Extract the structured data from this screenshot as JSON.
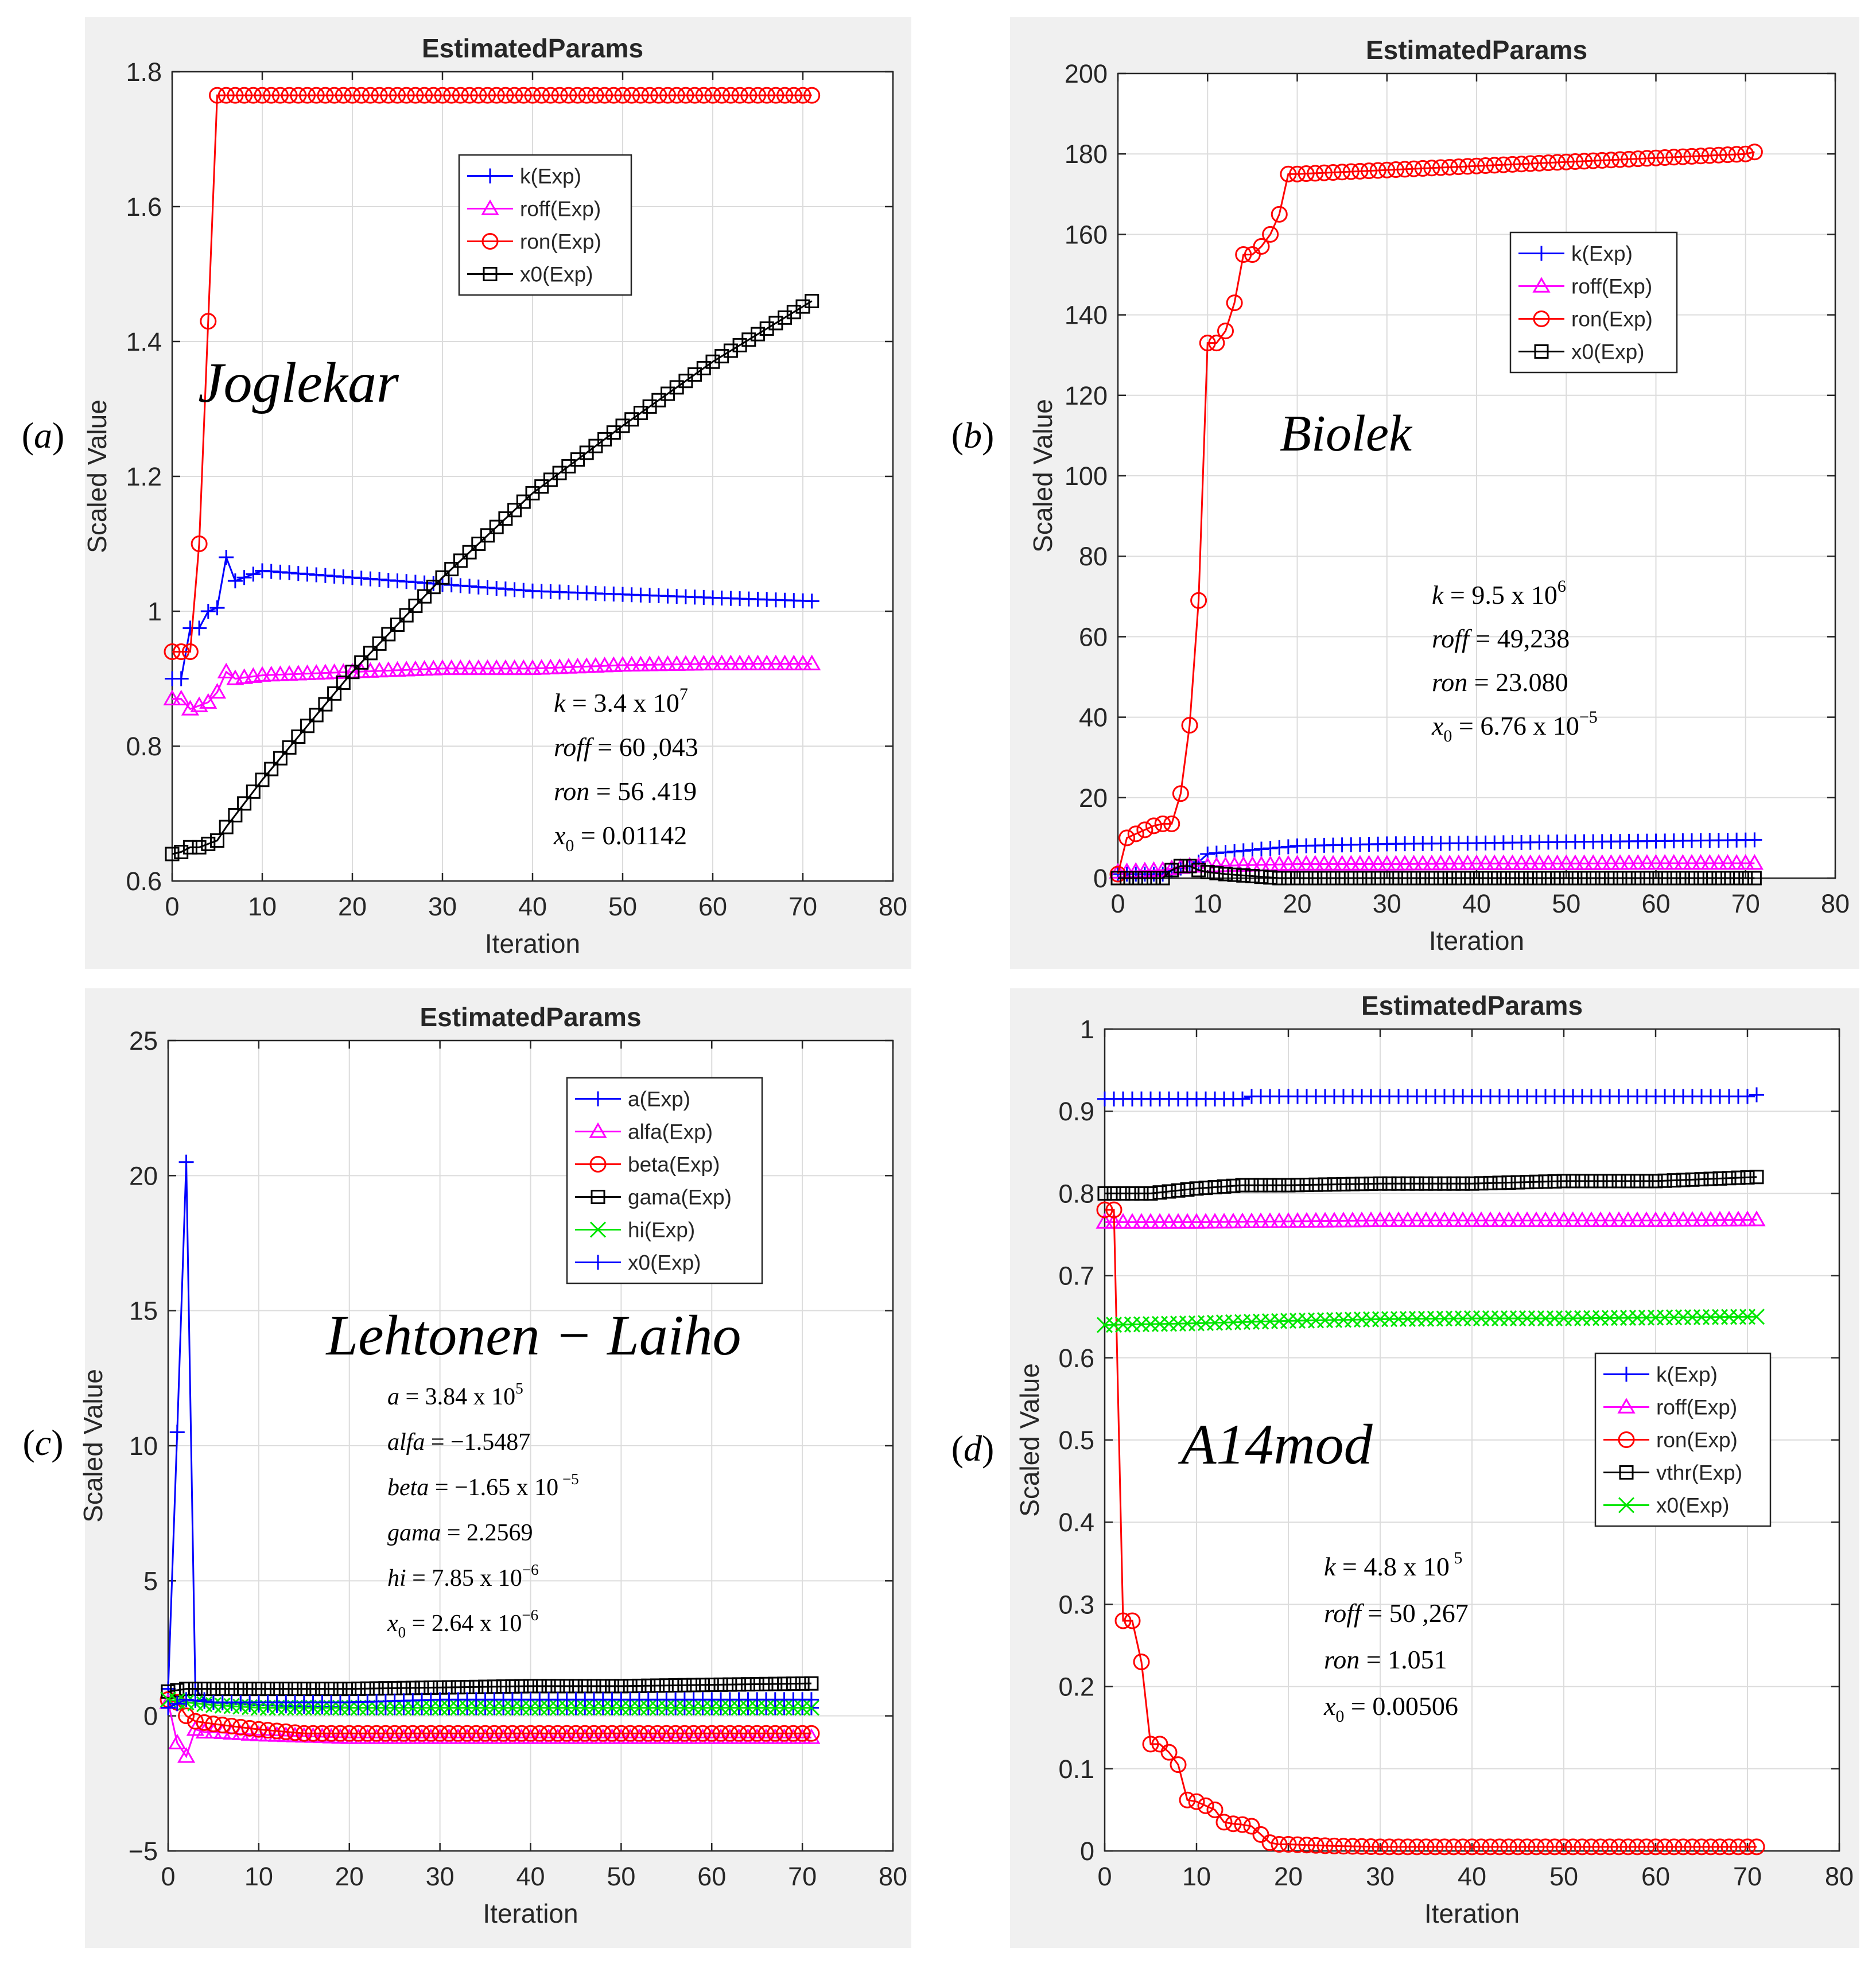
{
  "chart_data": [
    {
      "panel_label": "(a)",
      "type": "line",
      "title": "EstimatedParams",
      "xlabel": "Iteration",
      "ylabel": "Scaled Value",
      "xlim": [
        0,
        80
      ],
      "ylim": [
        0.6,
        1.8
      ],
      "xticks": [
        0,
        10,
        20,
        30,
        40,
        50,
        60,
        70,
        80
      ],
      "yticks": [
        0.6,
        0.8,
        1,
        1.2,
        1.4,
        1.6,
        1.8
      ],
      "ytick_labels": [
        "0.6",
        "0.8",
        "1",
        "1.2",
        "1.4",
        "1.6",
        "1.8"
      ],
      "grid": true,
      "legend_position": "upper-center",
      "model_name": "Joglekar",
      "annotations": [
        {
          "name": "k",
          "prefix": " = 3.4 x 10",
          "sup": "7"
        },
        {
          "name": "roff",
          "prefix": "  = 60 ,043"
        },
        {
          "name": "ron",
          "prefix": "  = 56 .419"
        },
        {
          "name": "x",
          "sub": "0",
          "prefix": "  = 0.01142"
        }
      ],
      "series": [
        {
          "name": "k(Exp)",
          "color": "#0000ff",
          "marker": "plus",
          "x": [
            0,
            1,
            2,
            3,
            4,
            5,
            6,
            7,
            10,
            20,
            30,
            40,
            50,
            60,
            71
          ],
          "y": [
            0.9,
            0.9,
            0.975,
            0.975,
            1.0,
            1.005,
            1.08,
            1.045,
            1.06,
            1.05,
            1.04,
            1.03,
            1.025,
            1.02,
            1.015
          ]
        },
        {
          "name": "roff(Exp)",
          "color": "#ff00ff",
          "marker": "triangle",
          "x": [
            0,
            1,
            2,
            3,
            4,
            5,
            6,
            7,
            10,
            20,
            30,
            40,
            50,
            60,
            71
          ],
          "y": [
            0.87,
            0.87,
            0.855,
            0.86,
            0.865,
            0.88,
            0.91,
            0.9,
            0.905,
            0.91,
            0.915,
            0.915,
            0.92,
            0.922,
            0.922
          ]
        },
        {
          "name": "ron(Exp)",
          "color": "#ff0000",
          "marker": "circle",
          "x": [
            0,
            1,
            2,
            3,
            4,
            5,
            6,
            10,
            20,
            30,
            40,
            50,
            60,
            71
          ],
          "y": [
            0.94,
            0.94,
            0.94,
            1.1,
            1.43,
            1.765,
            1.765,
            1.765,
            1.765,
            1.765,
            1.765,
            1.765,
            1.765,
            1.765
          ]
        },
        {
          "name": "x0(Exp)",
          "color": "#000000",
          "marker": "square",
          "x": [
            0,
            1,
            2,
            3,
            4,
            5,
            6,
            10,
            20,
            30,
            40,
            50,
            60,
            71
          ],
          "y": [
            0.64,
            0.643,
            0.65,
            0.65,
            0.655,
            0.66,
            0.68,
            0.75,
            0.91,
            1.05,
            1.175,
            1.275,
            1.37,
            1.46
          ]
        }
      ]
    },
    {
      "panel_label": "(b)",
      "type": "line",
      "title": "EstimatedParams",
      "xlabel": "Iteration",
      "ylabel": "Scaled Value",
      "xlim": [
        0,
        80
      ],
      "ylim": [
        0,
        200
      ],
      "xticks": [
        0,
        10,
        20,
        30,
        40,
        50,
        60,
        70,
        80
      ],
      "yticks": [
        0,
        20,
        40,
        60,
        80,
        100,
        120,
        140,
        160,
        180,
        200
      ],
      "ytick_labels": [
        "0",
        "20",
        "40",
        "60",
        "80",
        "100",
        "120",
        "140",
        "160",
        "180",
        "200"
      ],
      "grid": true,
      "legend_position": "center-right",
      "model_name": "Biolek",
      "annotations": [
        {
          "name": "k",
          "prefix": " = 9.5 x 10",
          "sup": "6"
        },
        {
          "name": "roff",
          "prefix": "  = 49,238"
        },
        {
          "name": "ron",
          "prefix": " = 23.080"
        },
        {
          "name": "x",
          "sub": "0",
          "prefix": " = 6.76 x 10",
          "sup": "−5"
        }
      ],
      "series": [
        {
          "name": "k(Exp)",
          "color": "#0000ff",
          "marker": "plus",
          "x": [
            0,
            5,
            6,
            8,
            9,
            10,
            15,
            20,
            30,
            40,
            50,
            60,
            71
          ],
          "y": [
            1,
            1,
            2,
            3,
            4,
            6,
            7,
            8,
            8.5,
            8.7,
            9,
            9.2,
            9.5
          ]
        },
        {
          "name": "roff(Exp)",
          "color": "#ff00ff",
          "marker": "triangle",
          "x": [
            0,
            5,
            8,
            10,
            20,
            30,
            40,
            50,
            60,
            71
          ],
          "y": [
            1.5,
            2,
            3,
            3,
            3.5,
            3.5,
            3.6,
            3.6,
            3.7,
            3.7
          ]
        },
        {
          "name": "ron(Exp)",
          "color": "#ff0000",
          "marker": "circle",
          "x": [
            0,
            1,
            2,
            3,
            4,
            5,
            6,
            7,
            8,
            9,
            10,
            11,
            12,
            13,
            14,
            15,
            16,
            17,
            18,
            19,
            20,
            25,
            30,
            40,
            50,
            60,
            70,
            71
          ],
          "y": [
            1,
            10,
            11,
            12,
            13,
            13.5,
            13.5,
            21,
            38,
            69,
            133,
            133,
            136,
            143,
            155,
            155,
            157,
            160,
            165,
            175,
            175,
            175.5,
            176,
            177,
            178,
            179,
            180,
            180.5
          ]
        },
        {
          "name": "x0(Exp)",
          "color": "#000000",
          "marker": "square",
          "x": [
            0,
            5,
            6,
            7,
            8,
            9,
            10,
            12,
            15,
            18,
            20,
            30,
            40,
            50,
            60,
            71
          ],
          "y": [
            0,
            0,
            2,
            3,
            3,
            2,
            1.5,
            1,
            0.5,
            0,
            0,
            0,
            0,
            0,
            0,
            0
          ]
        }
      ]
    },
    {
      "panel_label": "(c)",
      "type": "line",
      "title": "EstimatedParams",
      "xlabel": "Iteration",
      "ylabel": "Scaled Value",
      "xlim": [
        0,
        80
      ],
      "ylim": [
        -5,
        25
      ],
      "xticks": [
        0,
        10,
        20,
        30,
        40,
        50,
        60,
        70,
        80
      ],
      "yticks": [
        -5,
        0,
        5,
        10,
        15,
        20,
        25
      ],
      "ytick_labels": [
        "−5",
        "0",
        "5",
        "10",
        "15",
        "20",
        "25"
      ],
      "grid": true,
      "legend_position": "upper-right",
      "model_name": "Lehtonen   − Laiho",
      "annotations": [
        {
          "name": "a",
          "prefix": " = 3.84 x 10",
          "sup": "5"
        },
        {
          "name": "alfa",
          "prefix": " = −1.5487"
        },
        {
          "name": "beta",
          "prefix": " = −1.65 x 10",
          "sup": " −5"
        },
        {
          "name": "gama",
          "prefix": " = 2.2569"
        },
        {
          "name": "hi",
          "prefix": " = 7.85 x 10",
          "sup": "−6"
        },
        {
          "name": "x",
          "sub": "0",
          "prefix": " = 2.64 x 10",
          "sup": "−6"
        }
      ],
      "series": [
        {
          "name": "a(Exp)",
          "color": "#0000ff",
          "marker": "plus",
          "x": [
            0,
            1,
            2,
            3,
            4,
            5,
            10,
            20,
            30,
            40,
            50,
            60,
            71
          ],
          "y": [
            1,
            10.5,
            20.5,
            1,
            0.6,
            0.5,
            0.4,
            0.3,
            0.3,
            0.3,
            0.3,
            0.3,
            0.3
          ]
        },
        {
          "name": "alfa(Exp)",
          "color": "#ff00ff",
          "marker": "triangle",
          "x": [
            0,
            1,
            2,
            3,
            4,
            5,
            10,
            20,
            30,
            40,
            50,
            60,
            71
          ],
          "y": [
            0.5,
            -1.0,
            -1.5,
            -0.5,
            -0.6,
            -0.6,
            -0.7,
            -0.8,
            -0.8,
            -0.8,
            -0.8,
            -0.8,
            -0.8
          ]
        },
        {
          "name": "beta(Exp)",
          "color": "#ff0000",
          "marker": "circle",
          "x": [
            0,
            1,
            2,
            3,
            5,
            10,
            15,
            20,
            30,
            40,
            50,
            60,
            71
          ],
          "y": [
            0.6,
            0.5,
            0.0,
            -0.2,
            -0.3,
            -0.5,
            -0.65,
            -0.65,
            -0.65,
            -0.65,
            -0.65,
            -0.65,
            -0.65
          ]
        },
        {
          "name": "gama(Exp)",
          "color": "#000000",
          "marker": "square",
          "x": [
            0,
            2,
            5,
            10,
            20,
            30,
            40,
            50,
            60,
            71
          ],
          "y": [
            0.9,
            1.0,
            1.0,
            1.0,
            1.0,
            1.05,
            1.1,
            1.1,
            1.15,
            1.2
          ]
        },
        {
          "name": "hi(Exp)",
          "color": "#00e600",
          "marker": "x",
          "x": [
            0,
            2,
            5,
            10,
            20,
            30,
            40,
            50,
            60,
            71
          ],
          "y": [
            0.6,
            0.5,
            0.4,
            0.3,
            0.3,
            0.3,
            0.3,
            0.3,
            0.3,
            0.3
          ]
        },
        {
          "name": "x0(Exp)",
          "color": "#0000ff",
          "marker": "plus",
          "x": [
            0,
            2,
            5,
            10,
            20,
            30,
            40,
            50,
            60,
            71
          ],
          "y": [
            0.3,
            0.6,
            0.5,
            0.5,
            0.5,
            0.6,
            0.6,
            0.6,
            0.6,
            0.6
          ]
        }
      ]
    },
    {
      "panel_label": "(d)",
      "type": "line",
      "title": "EstimatedParams",
      "xlabel": "Iteration",
      "ylabel": "Scaled Value",
      "xlim": [
        0,
        80
      ],
      "ylim": [
        0,
        1
      ],
      "xticks": [
        0,
        10,
        20,
        30,
        40,
        50,
        60,
        70,
        80
      ],
      "yticks": [
        0,
        0.1,
        0.2,
        0.3,
        0.4,
        0.5,
        0.6,
        0.7,
        0.8,
        0.9,
        1
      ],
      "ytick_labels": [
        "0",
        "0.1",
        "0.2",
        "0.3",
        "0.4",
        "0.5",
        "0.6",
        "0.7",
        "0.8",
        "0.9",
        "1"
      ],
      "grid": true,
      "legend_position": "center-right",
      "model_name": "A14mod",
      "annotations": [
        {
          "name": "k",
          "prefix": " = 4.8 x 10",
          "sup": " 5"
        },
        {
          "name": "roff",
          "prefix": "  = 50 ,267"
        },
        {
          "name": "ron",
          "prefix": "  = 1.051"
        },
        {
          "name": "x",
          "sub": "0",
          "prefix": "  = 0.00506"
        }
      ],
      "series": [
        {
          "name": "k(Exp)",
          "color": "#0000ff",
          "marker": "plus",
          "x": [
            0,
            10,
            15,
            16,
            20,
            30,
            40,
            50,
            60,
            70,
            71
          ],
          "y": [
            0.915,
            0.915,
            0.915,
            0.918,
            0.918,
            0.918,
            0.918,
            0.918,
            0.918,
            0.918,
            0.92
          ]
        },
        {
          "name": "roff(Exp)",
          "color": "#ff00ff",
          "marker": "triangle",
          "x": [
            0,
            10,
            20,
            30,
            40,
            50,
            60,
            71
          ],
          "y": [
            0.765,
            0.765,
            0.766,
            0.767,
            0.767,
            0.767,
            0.767,
            0.768
          ]
        },
        {
          "name": "ron(Exp)",
          "color": "#ff0000",
          "marker": "circle",
          "x": [
            0,
            1,
            2,
            3,
            4,
            5,
            6,
            7,
            8,
            9,
            10,
            11,
            12,
            13,
            14,
            15,
            16,
            17,
            18,
            19,
            20,
            25,
            30,
            40,
            50,
            60,
            71
          ],
          "y": [
            0.78,
            0.78,
            0.28,
            0.28,
            0.23,
            0.13,
            0.13,
            0.12,
            0.105,
            0.062,
            0.06,
            0.055,
            0.05,
            0.035,
            0.033,
            0.032,
            0.03,
            0.02,
            0.01,
            0.008,
            0.008,
            0.006,
            0.005,
            0.005,
            0.005,
            0.005,
            0.005
          ]
        },
        {
          "name": "vthr(Exp)",
          "color": "#000000",
          "marker": "square",
          "x": [
            0,
            5,
            10,
            15,
            20,
            30,
            40,
            50,
            60,
            71
          ],
          "y": [
            0.8,
            0.8,
            0.806,
            0.81,
            0.81,
            0.812,
            0.812,
            0.815,
            0.815,
            0.82
          ]
        },
        {
          "name": "x0(Exp)",
          "color": "#00e600",
          "marker": "x",
          "x": [
            0,
            10,
            20,
            30,
            40,
            50,
            60,
            71
          ],
          "y": [
            0.64,
            0.642,
            0.645,
            0.647,
            0.648,
            0.648,
            0.649,
            0.65
          ]
        }
      ]
    }
  ]
}
